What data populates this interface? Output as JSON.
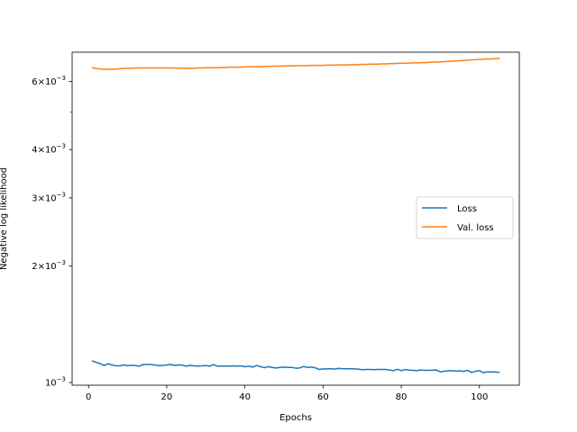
{
  "chart_data": {
    "type": "line",
    "title": "",
    "xlabel": "Epochs",
    "ylabel": "Negative log likelihood",
    "yscale": "log",
    "xlim": [
      -4.2,
      110.2
    ],
    "ylim": [
      0.000984,
      0.00714
    ],
    "grid": false,
    "legend_position": "center-right",
    "x_ticks": [
      {
        "value": 0,
        "label": "0"
      },
      {
        "value": 20,
        "label": "20"
      },
      {
        "value": 40,
        "label": "40"
      },
      {
        "value": 60,
        "label": "60"
      },
      {
        "value": 80,
        "label": "80"
      },
      {
        "value": 100,
        "label": "100"
      }
    ],
    "y_ticks": [
      {
        "value": 0.001,
        "mantissa": "",
        "exponent": "−3"
      },
      {
        "value": 0.002,
        "mantissa": "2",
        "exponent": "−3"
      },
      {
        "value": 0.003,
        "mantissa": "3",
        "exponent": "−3"
      },
      {
        "value": 0.004,
        "mantissa": "4",
        "exponent": "−3"
      },
      {
        "value": 0.006,
        "mantissa": "6",
        "exponent": "−3"
      }
    ],
    "y_minor_ticks": [
      0.005
    ],
    "series": [
      {
        "name": "Loss",
        "color": "#1f77b4",
        "x": [
          1,
          2,
          3,
          4,
          5,
          6,
          7,
          8,
          9,
          10,
          11,
          12,
          13,
          14,
          15,
          16,
          17,
          18,
          19,
          20,
          21,
          22,
          23,
          24,
          25,
          26,
          27,
          28,
          29,
          30,
          31,
          32,
          33,
          34,
          35,
          36,
          37,
          38,
          39,
          40,
          41,
          42,
          43,
          44,
          45,
          46,
          47,
          48,
          49,
          50,
          51,
          52,
          53,
          54,
          55,
          56,
          57,
          58,
          59,
          60,
          61,
          62,
          63,
          64,
          65,
          66,
          67,
          68,
          69,
          70,
          71,
          72,
          73,
          74,
          75,
          76,
          77,
          78,
          79,
          80,
          81,
          82,
          83,
          84,
          85,
          86,
          87,
          88,
          89,
          90,
          91,
          92,
          93,
          94,
          95,
          96,
          97,
          98,
          99,
          100,
          101,
          102,
          103,
          104,
          105
        ],
        "y": [
          0.001136,
          0.001127,
          0.001119,
          0.001106,
          0.001118,
          0.00111,
          0.001105,
          0.001104,
          0.001111,
          0.001105,
          0.001108,
          0.001106,
          0.001102,
          0.001113,
          0.001113,
          0.001113,
          0.001109,
          0.001106,
          0.001106,
          0.00111,
          0.001113,
          0.001107,
          0.00111,
          0.001109,
          0.001102,
          0.001108,
          0.001104,
          0.001103,
          0.001104,
          0.001106,
          0.001102,
          0.001112,
          0.001102,
          0.001103,
          0.001103,
          0.001103,
          0.001104,
          0.001102,
          0.001104,
          0.001098,
          0.001102,
          0.001096,
          0.001106,
          0.001099,
          0.001092,
          0.001099,
          0.001094,
          0.00109,
          0.001094,
          0.001096,
          0.001094,
          0.001094,
          0.001089,
          0.00109,
          0.0011,
          0.001094,
          0.001096,
          0.001091,
          0.001081,
          0.001084,
          0.001084,
          0.001086,
          0.001083,
          0.001088,
          0.001085,
          0.001086,
          0.001085,
          0.001084,
          0.001083,
          0.001079,
          0.001081,
          0.001081,
          0.001079,
          0.001081,
          0.001081,
          0.001081,
          0.001077,
          0.001073,
          0.001082,
          0.001073,
          0.00108,
          0.001076,
          0.001075,
          0.001073,
          0.001077,
          0.001075,
          0.001075,
          0.001076,
          0.001077,
          0.001065,
          0.00107,
          0.001072,
          0.001073,
          0.00107,
          0.001072,
          0.001068,
          0.001075,
          0.001061,
          0.001069,
          0.001073,
          0.00106,
          0.001065,
          0.001065,
          0.001065,
          0.001062
        ]
      },
      {
        "name": "Val. loss",
        "color": "#ff7f0e",
        "x": [
          1,
          2,
          3,
          4,
          5,
          6,
          7,
          8,
          9,
          10,
          11,
          12,
          13,
          14,
          15,
          16,
          17,
          18,
          19,
          20,
          21,
          22,
          23,
          24,
          25,
          26,
          27,
          28,
          29,
          30,
          31,
          32,
          33,
          34,
          35,
          36,
          37,
          38,
          39,
          40,
          41,
          42,
          43,
          44,
          45,
          46,
          47,
          48,
          49,
          50,
          51,
          52,
          53,
          54,
          55,
          56,
          57,
          58,
          59,
          60,
          61,
          62,
          63,
          64,
          65,
          66,
          67,
          68,
          69,
          70,
          71,
          72,
          73,
          74,
          75,
          76,
          77,
          78,
          79,
          80,
          81,
          82,
          83,
          84,
          85,
          86,
          87,
          88,
          89,
          90,
          91,
          92,
          93,
          94,
          95,
          96,
          97,
          98,
          99,
          100,
          101,
          102,
          103,
          104,
          105
        ],
        "y": [
          0.00651,
          0.00648,
          0.00646,
          0.00645,
          0.00645,
          0.00645,
          0.00646,
          0.00647,
          0.00648,
          0.00649,
          0.00649,
          0.0065,
          0.0065,
          0.0065,
          0.0065,
          0.0065,
          0.0065,
          0.0065,
          0.0065,
          0.0065,
          0.0065,
          0.0065,
          0.00649,
          0.00649,
          0.00649,
          0.00649,
          0.00649,
          0.0065,
          0.0065,
          0.00651,
          0.00651,
          0.00651,
          0.00651,
          0.00652,
          0.00652,
          0.00653,
          0.00653,
          0.00653,
          0.00653,
          0.00654,
          0.00654,
          0.00655,
          0.00655,
          0.00655,
          0.00656,
          0.00656,
          0.00657,
          0.00657,
          0.00657,
          0.00658,
          0.00658,
          0.00658,
          0.00659,
          0.00659,
          0.00659,
          0.00659,
          0.0066,
          0.0066,
          0.0066,
          0.0066,
          0.00661,
          0.00661,
          0.00661,
          0.00662,
          0.00662,
          0.00662,
          0.00663,
          0.00663,
          0.00663,
          0.00664,
          0.00664,
          0.00665,
          0.00665,
          0.00665,
          0.00666,
          0.00666,
          0.00667,
          0.00667,
          0.00668,
          0.00668,
          0.00669,
          0.00669,
          0.0067,
          0.0067,
          0.00671,
          0.00671,
          0.00672,
          0.00673,
          0.00673,
          0.00674,
          0.00675,
          0.00676,
          0.00677,
          0.00678,
          0.00679,
          0.0068,
          0.00681,
          0.00682,
          0.00683,
          0.00684,
          0.00685,
          0.00686,
          0.00686,
          0.00687,
          0.00688
        ]
      }
    ]
  }
}
